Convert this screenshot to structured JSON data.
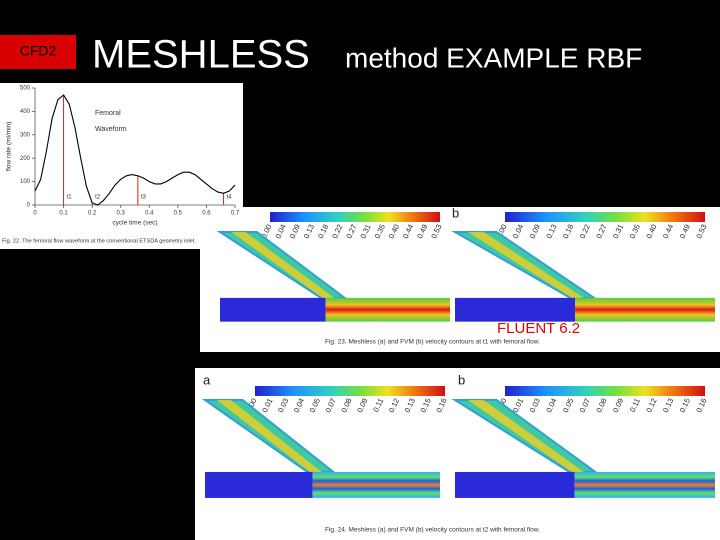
{
  "header": {
    "badge": "CFD2",
    "title_main": "MESHLESS",
    "title_rest": "method EXAMPLE RBF"
  },
  "waveform": {
    "type": "line",
    "ylabel": "flow rate (ml/min)",
    "xlabel": "cycle time (sec)",
    "legend_lines": [
      "Femoral",
      "Waveform"
    ],
    "color": "#000000",
    "x": [
      0,
      0.02,
      0.04,
      0.06,
      0.08,
      0.1,
      0.12,
      0.14,
      0.16,
      0.18,
      0.2,
      0.22,
      0.24,
      0.26,
      0.28,
      0.3,
      0.32,
      0.34,
      0.36,
      0.38,
      0.4,
      0.42,
      0.44,
      0.46,
      0.48,
      0.5,
      0.52,
      0.54,
      0.56,
      0.58,
      0.6,
      0.62,
      0.64,
      0.66,
      0.68,
      0.7
    ],
    "values": [
      60,
      110,
      230,
      370,
      450,
      470,
      430,
      330,
      200,
      80,
      10,
      0,
      20,
      50,
      85,
      110,
      125,
      130,
      125,
      115,
      100,
      90,
      90,
      100,
      115,
      130,
      140,
      140,
      130,
      110,
      90,
      70,
      55,
      50,
      60,
      85
    ],
    "xlim": [
      0,
      0.7
    ],
    "ylim": [
      0,
      500
    ],
    "xticks": [
      0,
      0.1,
      0.2,
      0.3,
      0.4,
      0.5,
      0.6,
      0.7
    ],
    "yticks": [
      0,
      100,
      200,
      300,
      400,
      500
    ],
    "markers": [
      {
        "x": 0.1,
        "y": 470,
        "label": "t1"
      },
      {
        "x": 0.2,
        "y": 10,
        "label": "t2"
      },
      {
        "x": 0.36,
        "y": 125,
        "label": "t3"
      },
      {
        "x": 0.66,
        "y": 50,
        "label": "t4"
      }
    ],
    "marker_color": "#d42020",
    "caption": "Fig. 22. The femoral flow waveform at the conventional ETSDA geometry inlet."
  },
  "fig23": {
    "panel_label_b": "b",
    "colorbar_a": [
      "0.00",
      "0.04",
      "0.09",
      "0.13",
      "0.18",
      "0.22",
      "0.27",
      "0.31",
      "0.35",
      "0.40",
      "0.44",
      "0.49",
      "0.53"
    ],
    "colorbar_b": [
      "0.00",
      "0.04",
      "0.09",
      "0.13",
      "0.18",
      "0.22",
      "0.27",
      "0.31",
      "0.35",
      "0.40",
      "0.44",
      "0.49",
      "0.53"
    ],
    "caption": "Fig. 23. Meshless (a) and FVM (b) velocity contours at t1 with femoral flow.",
    "overlay": "FLUENT 6.2"
  },
  "fig24": {
    "panel_label_a": "a",
    "panel_label_b": "b",
    "colorbar_a": [
      "0.00",
      "0.01",
      "0.03",
      "0.04",
      "0.05",
      "0.07",
      "0.08",
      "0.09",
      "0.11",
      "0.12",
      "0.13",
      "0.15",
      "0.16"
    ],
    "colorbar_b": [
      "0.00",
      "0.01",
      "0.03",
      "0.04",
      "0.05",
      "0.07",
      "0.08",
      "0.09",
      "0.11",
      "0.12",
      "0.13",
      "0.15",
      "0.16"
    ],
    "caption": "Fig. 24. Meshless (a) and FVM (b) velocity contours at t2 with femoral flow."
  }
}
